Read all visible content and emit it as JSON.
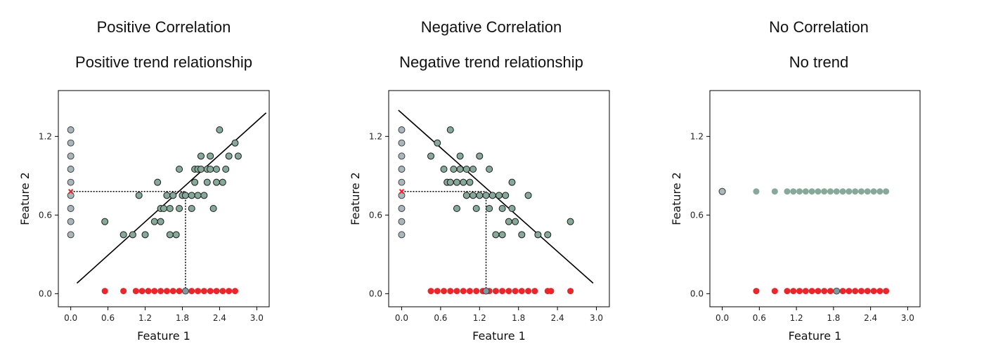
{
  "chart_data": [
    {
      "type": "scatter",
      "title": "Positive Correlation",
      "subtitle": "Positive trend relationship",
      "xlabel": "Feature 1",
      "ylabel": "Feature 2",
      "xlim": [
        -0.2,
        3.2
      ],
      "ylim": [
        -0.1,
        1.55
      ],
      "xticks": [
        "0.0",
        "0.6",
        "1.2",
        "1.8",
        "2.4",
        "3.0"
      ],
      "yticks": [
        "0.0",
        "0.6",
        "1.2"
      ],
      "colors": {
        "points": "#86a99c",
        "projected_y": "#a9b6bb",
        "projected_x": "#e8262b",
        "line": "#000000",
        "guide": "#000000"
      },
      "points": [
        [
          0.55,
          0.55
        ],
        [
          0.85,
          0.45
        ],
        [
          1.0,
          0.45
        ],
        [
          1.1,
          0.75
        ],
        [
          1.2,
          0.45
        ],
        [
          1.35,
          0.55
        ],
        [
          1.4,
          0.85
        ],
        [
          1.45,
          0.65
        ],
        [
          1.45,
          0.55
        ],
        [
          1.5,
          0.65
        ],
        [
          1.55,
          0.75
        ],
        [
          1.6,
          0.65
        ],
        [
          1.6,
          0.45
        ],
        [
          1.65,
          0.75
        ],
        [
          1.7,
          0.45
        ],
        [
          1.75,
          0.65
        ],
        [
          1.75,
          0.95
        ],
        [
          1.8,
          0.75
        ],
        [
          1.85,
          0.75
        ],
        [
          1.95,
          0.65
        ],
        [
          1.95,
          0.75
        ],
        [
          2.0,
          0.85
        ],
        [
          2.0,
          0.95
        ],
        [
          2.05,
          0.75
        ],
        [
          2.05,
          0.95
        ],
        [
          2.1,
          0.95
        ],
        [
          2.1,
          1.05
        ],
        [
          2.15,
          0.75
        ],
        [
          2.2,
          0.95
        ],
        [
          2.2,
          0.85
        ],
        [
          2.25,
          1.05
        ],
        [
          2.25,
          0.95
        ],
        [
          2.3,
          0.65
        ],
        [
          2.35,
          0.85
        ],
        [
          2.35,
          0.95
        ],
        [
          2.4,
          1.25
        ],
        [
          2.45,
          0.85
        ],
        [
          2.5,
          0.95
        ],
        [
          2.55,
          1.05
        ],
        [
          2.65,
          1.15
        ],
        [
          2.7,
          1.05
        ]
      ],
      "projected_y": [
        0.45,
        0.55,
        0.65,
        0.75,
        0.85,
        0.95,
        1.05,
        1.15,
        1.25
      ],
      "projected_x": [
        0.55,
        0.85,
        1.05,
        1.15,
        1.25,
        1.35,
        1.45,
        1.55,
        1.65,
        1.75,
        1.95,
        2.05,
        2.15,
        2.25,
        2.35,
        2.45,
        2.55,
        2.65
      ],
      "highlight": {
        "x": 1.85,
        "y": 0.78
      },
      "fit_line": [
        [
          0.1,
          0.08
        ],
        [
          3.15,
          1.38
        ]
      ]
    },
    {
      "type": "scatter",
      "title": "Negative Correlation",
      "subtitle": "Negative trend relationship",
      "xlabel": "Feature 1",
      "ylabel": "Feature 2",
      "xlim": [
        -0.2,
        3.2
      ],
      "ylim": [
        -0.1,
        1.55
      ],
      "xticks": [
        "0.0",
        "0.6",
        "1.2",
        "1.8",
        "2.4",
        "3.0"
      ],
      "yticks": [
        "0.0",
        "0.6",
        "1.2"
      ],
      "colors": {
        "points": "#86a99c",
        "projected_y": "#a9b6bb",
        "projected_x": "#e8262b",
        "line": "#000000",
        "guide": "#000000"
      },
      "points": [
        [
          0.45,
          1.05
        ],
        [
          0.55,
          1.15
        ],
        [
          0.65,
          0.95
        ],
        [
          0.7,
          0.85
        ],
        [
          0.75,
          1.25
        ],
        [
          0.75,
          0.85
        ],
        [
          0.8,
          0.95
        ],
        [
          0.85,
          0.65
        ],
        [
          0.85,
          0.85
        ],
        [
          0.9,
          0.95
        ],
        [
          0.9,
          1.05
        ],
        [
          0.95,
          0.85
        ],
        [
          1.0,
          0.95
        ],
        [
          1.0,
          0.75
        ],
        [
          1.05,
          0.85
        ],
        [
          1.1,
          0.95
        ],
        [
          1.1,
          0.75
        ],
        [
          1.15,
          0.65
        ],
        [
          1.2,
          1.05
        ],
        [
          1.2,
          0.75
        ],
        [
          1.3,
          0.75
        ],
        [
          1.35,
          0.95
        ],
        [
          1.35,
          0.65
        ],
        [
          1.4,
          0.75
        ],
        [
          1.45,
          0.45
        ],
        [
          1.5,
          0.75
        ],
        [
          1.55,
          0.45
        ],
        [
          1.55,
          0.65
        ],
        [
          1.6,
          0.75
        ],
        [
          1.65,
          0.55
        ],
        [
          1.7,
          0.65
        ],
        [
          1.7,
          0.85
        ],
        [
          1.75,
          0.55
        ],
        [
          1.85,
          0.45
        ],
        [
          1.95,
          0.75
        ],
        [
          2.1,
          0.45
        ],
        [
          2.25,
          0.45
        ],
        [
          2.6,
          0.55
        ]
      ],
      "projected_y": [
        0.45,
        0.55,
        0.65,
        0.75,
        0.85,
        0.95,
        1.05,
        1.15,
        1.25
      ],
      "projected_x": [
        0.45,
        0.55,
        0.65,
        0.75,
        0.85,
        0.95,
        1.05,
        1.15,
        1.25,
        1.35,
        1.45,
        1.55,
        1.65,
        1.75,
        1.85,
        1.95,
        2.05,
        2.25,
        2.3,
        2.6
      ],
      "highlight": {
        "x": 1.3,
        "y": 0.78
      },
      "fit_line": [
        [
          -0.05,
          1.4
        ],
        [
          2.95,
          0.08
        ]
      ]
    },
    {
      "type": "scatter",
      "title": "No Correlation",
      "subtitle": "No trend",
      "xlabel": "Feature 1",
      "ylabel": "Feature 2",
      "xlim": [
        -0.2,
        3.2
      ],
      "ylim": [
        -0.1,
        1.55
      ],
      "xticks": [
        "0.0",
        "0.6",
        "1.2",
        "1.8",
        "2.4",
        "3.0"
      ],
      "yticks": [
        "0.0",
        "0.6",
        "1.2"
      ],
      "colors": {
        "points": "#86a99c",
        "projected_y": "#a9b6bb",
        "projected_x": "#e8262b"
      },
      "points": [
        [
          0.55,
          0.78
        ],
        [
          0.85,
          0.78
        ],
        [
          1.05,
          0.78
        ],
        [
          1.15,
          0.78
        ],
        [
          1.25,
          0.78
        ],
        [
          1.35,
          0.78
        ],
        [
          1.45,
          0.78
        ],
        [
          1.55,
          0.78
        ],
        [
          1.65,
          0.78
        ],
        [
          1.75,
          0.78
        ],
        [
          1.85,
          0.78
        ],
        [
          1.95,
          0.78
        ],
        [
          2.05,
          0.78
        ],
        [
          2.15,
          0.78
        ],
        [
          2.25,
          0.78
        ],
        [
          2.35,
          0.78
        ],
        [
          2.45,
          0.78
        ],
        [
          2.55,
          0.78
        ],
        [
          2.65,
          0.78
        ]
      ],
      "projected_y": [
        0.78
      ],
      "projected_x": [
        0.55,
        0.85,
        1.05,
        1.15,
        1.25,
        1.35,
        1.45,
        1.55,
        1.65,
        1.75,
        1.95,
        2.05,
        2.15,
        2.25,
        2.35,
        2.45,
        2.55,
        2.65
      ],
      "highlight": {
        "x": 1.85,
        "y": 0.02
      },
      "fit_line": null
    }
  ]
}
